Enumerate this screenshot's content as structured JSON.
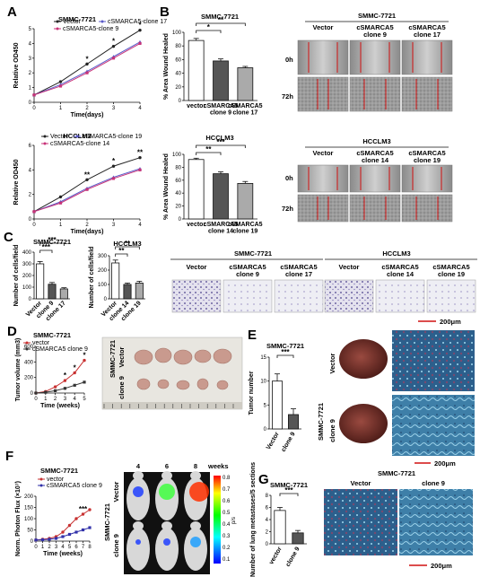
{
  "panel_letters": [
    "A",
    "B",
    "C",
    "D",
    "E",
    "F",
    "G"
  ],
  "chart_data": [
    {
      "id": "A1",
      "type": "line",
      "title": "SMMC-7721",
      "xlabel": "Time(days)",
      "ylabel": "Relative OD450",
      "x": [
        0,
        1,
        2,
        3,
        4
      ],
      "xlim": [
        0,
        4
      ],
      "ylim": [
        0,
        5
      ],
      "yticks": [
        0,
        1,
        2,
        3,
        4,
        5
      ],
      "series": [
        {
          "name": "Vector",
          "values": [
            0.5,
            1.4,
            2.6,
            3.8,
            4.9
          ],
          "color": "#222222",
          "marker": "circle"
        },
        {
          "name": "cSMARCA5-clone 17",
          "values": [
            0.5,
            1.2,
            2.1,
            3.1,
            4.1
          ],
          "color": "#5a5ac8",
          "marker": "triangle"
        },
        {
          "name": "cSMARCA5-clone 9",
          "values": [
            0.5,
            1.1,
            2.0,
            3.0,
            4.0
          ],
          "color": "#c83278",
          "marker": "square"
        }
      ],
      "sig": [
        "",
        "",
        "*",
        "*",
        "*"
      ]
    },
    {
      "id": "A2",
      "type": "line",
      "title": "HCCLM3",
      "xlabel": "Time(days)",
      "ylabel": "Relative OD450",
      "x": [
        0,
        1,
        2,
        3,
        4
      ],
      "xlim": [
        0,
        4
      ],
      "ylim": [
        0,
        6
      ],
      "yticks": [
        0,
        2,
        4,
        6
      ],
      "series": [
        {
          "name": "Vector",
          "values": [
            0.6,
            1.8,
            3.2,
            4.3,
            5.0
          ],
          "color": "#222222",
          "marker": "circle"
        },
        {
          "name": "cSMARCA5-clone 19",
          "values": [
            0.6,
            1.4,
            2.5,
            3.4,
            4.1
          ],
          "color": "#5a5ac8",
          "marker": "triangle"
        },
        {
          "name": "cSMARCA5-clone 14",
          "values": [
            0.6,
            1.3,
            2.4,
            3.3,
            4.0
          ],
          "color": "#c83278",
          "marker": "square"
        }
      ],
      "sig": [
        "",
        "",
        "**",
        "*",
        "**"
      ]
    },
    {
      "id": "B1",
      "type": "bar",
      "title": "SMMC-7721",
      "ylabel": "% Area Wound Healed",
      "categories": [
        "vector",
        "cSMARCA5\nclone 9",
        "cSMARCA5\nclone 17"
      ],
      "values": [
        88,
        58,
        48
      ],
      "errors": [
        3,
        3,
        2
      ],
      "ylim": [
        0,
        100
      ],
      "yticks": [
        0,
        20,
        40,
        60,
        80,
        100
      ],
      "fills": [
        "#ffffff",
        "#555555",
        "#aaaaaa"
      ],
      "brackets": [
        {
          "from": 0,
          "to": 2,
          "label": "**"
        },
        {
          "from": 0,
          "to": 1,
          "label": "*"
        }
      ]
    },
    {
      "id": "B2",
      "type": "bar",
      "title": "HCCLM3",
      "ylabel": "% Area Wound Healed",
      "categories": [
        "vector",
        "cSMARCA5\nclone 14",
        "cSMARCA5\nclone 19"
      ],
      "values": [
        92,
        70,
        55
      ],
      "errors": [
        2,
        3,
        3
      ],
      "ylim": [
        0,
        100
      ],
      "yticks": [
        0,
        20,
        40,
        60,
        80,
        100
      ],
      "fills": [
        "#ffffff",
        "#555555",
        "#aaaaaa"
      ],
      "brackets": [
        {
          "from": 0,
          "to": 2,
          "label": "***"
        },
        {
          "from": 0,
          "to": 1,
          "label": "**"
        }
      ]
    },
    {
      "id": "C1",
      "type": "bar",
      "title": "SMMC-7721",
      "ylabel": "Number of cells/field",
      "categories": [
        "Vector",
        "clone 9",
        "clone 17"
      ],
      "values": [
        300,
        125,
        85
      ],
      "errors": [
        20,
        15,
        10
      ],
      "ylim": [
        0,
        400
      ],
      "yticks": [
        0,
        100,
        200,
        300,
        400
      ],
      "fills": [
        "#ffffff",
        "#555555",
        "#aaaaaa"
      ],
      "brackets": [
        {
          "from": 0,
          "to": 2,
          "label": "***"
        },
        {
          "from": 0,
          "to": 1,
          "label": "***"
        }
      ]
    },
    {
      "id": "C2",
      "type": "bar",
      "title": "HCCLM3",
      "ylabel": "Number of cells/field",
      "categories": [
        "Vector",
        "clone 14",
        "clone 19"
      ],
      "values": [
        250,
        100,
        110
      ],
      "errors": [
        20,
        10,
        12
      ],
      "ylim": [
        0,
        300
      ],
      "yticks": [
        0,
        100,
        200,
        300
      ],
      "fills": [
        "#ffffff",
        "#555555",
        "#aaaaaa"
      ],
      "brackets": [
        {
          "from": 0,
          "to": 2,
          "label": "**"
        },
        {
          "from": 0,
          "to": 1,
          "label": "**"
        }
      ]
    },
    {
      "id": "D",
      "type": "line",
      "title": "SMMC-7721",
      "xlabel": "Time (weeks)",
      "ylabel": "Tumor volume (mm3)",
      "x": [
        0,
        1,
        2,
        3,
        4,
        5
      ],
      "xlim": [
        0,
        5
      ],
      "ylim": [
        0,
        600
      ],
      "yticks": [
        0,
        200,
        400,
        600
      ],
      "series": [
        {
          "name": "vector",
          "values": [
            0,
            20,
            80,
            160,
            260,
            420
          ],
          "color": "#c83232",
          "marker": "circle"
        },
        {
          "name": "cSMARCA5 clone 9",
          "values": [
            0,
            10,
            30,
            60,
            100,
            140
          ],
          "color": "#333333",
          "marker": "square"
        }
      ],
      "sig": [
        "",
        "",
        "",
        "*",
        "*",
        "*"
      ]
    },
    {
      "id": "E",
      "type": "bar",
      "title": "SMMC-7721",
      "ylabel": "Tumor number",
      "categories": [
        "Vector",
        "clone 9"
      ],
      "values": [
        10,
        3
      ],
      "errors": [
        1.5,
        1.2
      ],
      "ylim": [
        0,
        15
      ],
      "yticks": [
        0,
        5,
        10,
        15
      ],
      "fills": [
        "#ffffff",
        "#555555"
      ],
      "brackets": [
        {
          "from": 0,
          "to": 1,
          "label": "***"
        }
      ]
    },
    {
      "id": "F",
      "type": "line",
      "title": "SMMC-7721",
      "xlabel": "Time (weeks)",
      "ylabel": "Norm. Photon Flux (×10⁷)",
      "x": [
        0,
        1,
        2,
        3,
        4,
        5,
        6,
        7,
        8
      ],
      "xlim": [
        0,
        8
      ],
      "ylim": [
        0,
        200
      ],
      "yticks": [
        0,
        50,
        100,
        150,
        200
      ],
      "series": [
        {
          "name": "vector",
          "values": [
            5,
            8,
            12,
            20,
            40,
            70,
            100,
            120,
            140
          ],
          "color": "#c83232",
          "marker": "circle"
        },
        {
          "name": "cSMARCA5 clone 9",
          "values": [
            5,
            6,
            8,
            12,
            20,
            30,
            40,
            50,
            60
          ],
          "color": "#3232aa",
          "marker": "square"
        }
      ],
      "sig": [
        "",
        "",
        "",
        "",
        "",
        "",
        "",
        "***",
        ""
      ]
    },
    {
      "id": "G",
      "type": "bar",
      "title": "SMMC-7721",
      "ylabel": "Number of lung metastases/5 sections",
      "categories": [
        "vector",
        "clone 9"
      ],
      "values": [
        5.5,
        1.8
      ],
      "errors": [
        0.5,
        0.4
      ],
      "ylim": [
        0,
        8
      ],
      "yticks": [
        0,
        2,
        4,
        6,
        8
      ],
      "fills": [
        "#ffffff",
        "#555555"
      ],
      "brackets": [
        {
          "from": 0,
          "to": 1,
          "label": "***"
        }
      ]
    }
  ],
  "wound": {
    "B_smmc": {
      "title": "SMMC-7721",
      "cols": [
        "Vector",
        "cSMARCA5\nclone 9",
        "cSMARCA5\nclone 17"
      ],
      "rows": [
        "0h",
        "72h"
      ]
    },
    "B_hcc": {
      "title": "HCCLM3",
      "cols": [
        "Vector",
        "cSMARCA5\nclone 14",
        "cSMARCA5\nclone 19"
      ],
      "rows": [
        "0h",
        "72h"
      ]
    }
  },
  "transwell": {
    "smmc": {
      "title": "SMMC-7721",
      "cols": [
        "Vector",
        "cSMARCA5\nclone 9",
        "cSMARCA5\nclone 17"
      ]
    },
    "hcc": {
      "title": "HCCLM3",
      "cols": [
        "Vector",
        "cSMARCA5\nclone 14",
        "cSMARCA5\nclone 19"
      ]
    },
    "scale": "200μm"
  },
  "xenograft": {
    "row_label_side": "SMMC-7721",
    "rows": [
      "Vector",
      "clone 9"
    ]
  },
  "liver": {
    "side": "SMMC-7721",
    "rows": [
      "Vector",
      "clone 9"
    ],
    "scale": "200μm"
  },
  "imaging": {
    "weeks_labels": [
      "4",
      "6",
      "8"
    ],
    "weeks_word": "weeks",
    "side": "SMMC-7721",
    "rows": [
      "Vector",
      "clone 9"
    ],
    "colorbar": [
      "0.8",
      "0.7",
      "0.6",
      "0.5",
      "0.4",
      "0.3",
      "0.2",
      "0.1"
    ],
    "cb_unit": "p/s"
  },
  "lung": {
    "title": "SMMC-7721",
    "cols": [
      "Vector",
      "clone 9"
    ],
    "scale": "200μm"
  }
}
